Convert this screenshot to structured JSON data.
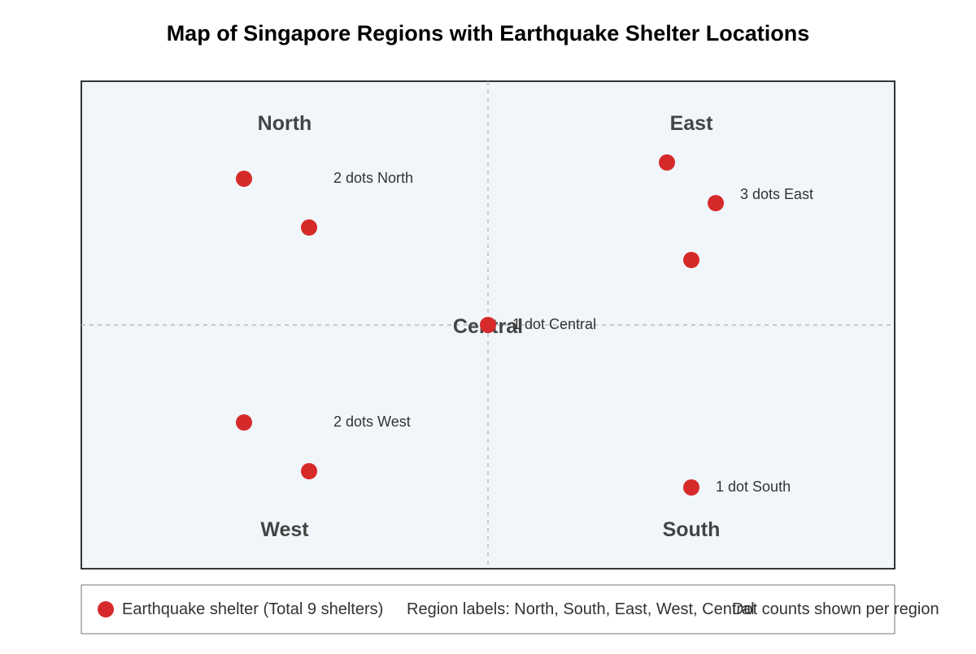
{
  "title": "Map of Singapore Regions with Earthquake Shelter Locations",
  "map": {
    "background_color": "#f1f6fa",
    "border_color": "#333333",
    "divider_color": "#bbbbbb",
    "region_label_color": "#444444",
    "shelter_color": "#d62a2a",
    "regions": {
      "north": "North",
      "east": "East",
      "west": "West",
      "south": "South",
      "central": "Central"
    },
    "annotations": {
      "north": "2 dots North",
      "east": "3 dots East",
      "central": "1 dot Central",
      "west": "2 dots West",
      "south": "1 dot South"
    }
  },
  "legend": {
    "shelter": "Earthquake shelter (Total 9 shelters)",
    "regions": "Region labels: North, South, East, West, Central",
    "counts": "Dot counts shown per region"
  }
}
